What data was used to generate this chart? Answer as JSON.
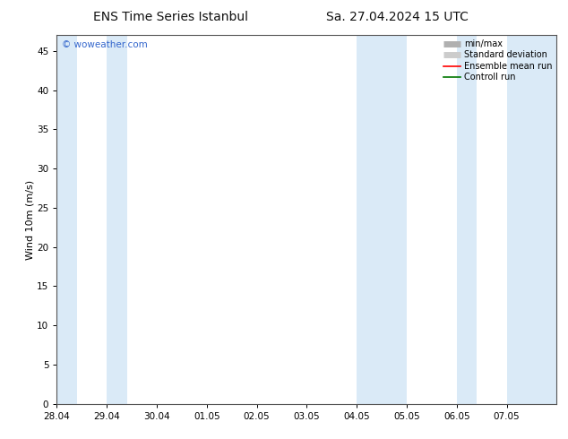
{
  "title_left": "ENS Time Series Istanbul",
  "title_right": "Sa. 27.04.2024 15 UTC",
  "ylabel": "Wind 10m (m/s)",
  "watermark": "© woweather.com",
  "watermark_color": "#3366cc",
  "ylim": [
    0,
    47
  ],
  "yticks": [
    0,
    5,
    10,
    15,
    20,
    25,
    30,
    35,
    40,
    45
  ],
  "xtick_labels": [
    "28.04",
    "29.04",
    "30.04",
    "01.05",
    "02.05",
    "03.05",
    "04.05",
    "05.05",
    "06.05",
    "07.05"
  ],
  "shaded_color": "#daeaf7",
  "background_color": "#ffffff",
  "legend_items": [
    {
      "label": "min/max",
      "color": "#b0b0b0",
      "style": "hbar"
    },
    {
      "label": "Standard deviation",
      "color": "#cccccc",
      "style": "hbar"
    },
    {
      "label": "Ensemble mean run",
      "color": "#ff0000",
      "style": "line"
    },
    {
      "label": "Controll run",
      "color": "#007700",
      "style": "line"
    }
  ],
  "title_fontsize": 10,
  "axis_fontsize": 8,
  "tick_fontsize": 7.5
}
